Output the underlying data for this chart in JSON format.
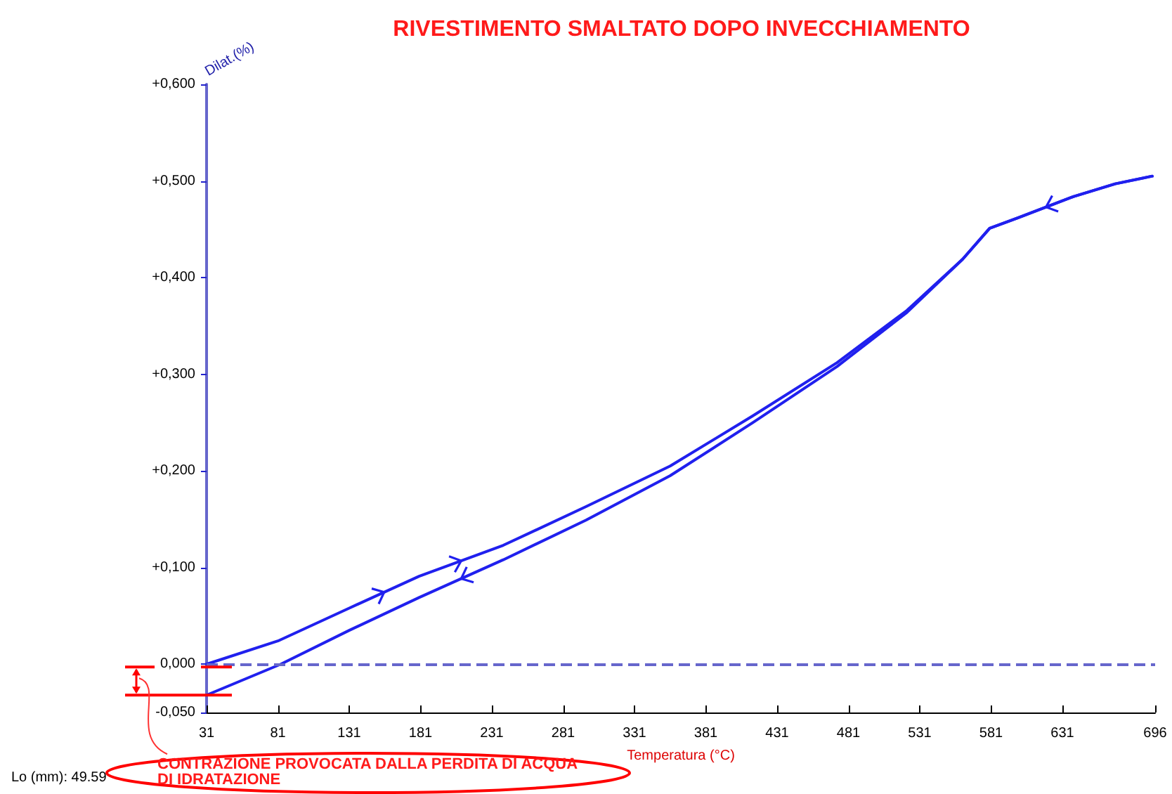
{
  "chart_data": {
    "type": "line",
    "title": "RIVESTIMENTO SMALTATO DOPO INVECCHIAMENTO",
    "xlabel": "Temperatura (°C)",
    "ylabel": "Dilat.(%)",
    "annotations": [
      "CONTRAZIONE PROVOCATA DALLA PERDITA DI ACQUA DI IDRATAZIONE",
      "Lo (mm): 49.59"
    ],
    "series": [
      {
        "color": "#2020ee",
        "x": [
          31,
          81,
          131,
          180,
          239,
          297,
          356,
          414,
          473,
          522,
          561,
          580,
          600,
          639,
          668,
          694
        ],
        "values": [
          0.0,
          0.024,
          0.058,
          0.091,
          0.123,
          0.163,
          0.205,
          0.257,
          0.312,
          0.366,
          0.419,
          0.451,
          0.462,
          0.484,
          0.497,
          0.505
        ]
      },
      {
        "color": "#2020ee",
        "x": [
          694,
          668,
          639,
          600,
          580,
          561,
          522,
          473,
          414,
          356,
          297,
          239,
          180,
          131,
          83,
          31
        ],
        "values": [
          0.505,
          0.497,
          0.484,
          0.462,
          0.451,
          0.419,
          0.364,
          0.308,
          0.25,
          0.195,
          0.149,
          0.108,
          0.069,
          0.035,
          0.0,
          -0.032
        ]
      }
    ],
    "xlim": [
      31,
      696
    ],
    "xticks": [
      31,
      81,
      131,
      181,
      231,
      281,
      331,
      381,
      431,
      481,
      531,
      581,
      631,
      696
    ],
    "ylim": [
      -0.05,
      0.6
    ],
    "yticks": [
      {
        "value": -0.05,
        "label": "-0,050"
      },
      {
        "value": 0,
        "label": "0,000"
      },
      {
        "value": 0.1,
        "label": "+0,100"
      },
      {
        "value": 0.2,
        "label": "+0,200"
      },
      {
        "value": 0.3,
        "label": "+0,300"
      },
      {
        "value": 0.4,
        "label": "+0,400"
      },
      {
        "value": 0.5,
        "label": "+0,500"
      },
      {
        "value": 0.6,
        "label": "+0,600"
      }
    ],
    "ref_lines": [
      {
        "axis": "y",
        "value": 0,
        "color": "#6666cc",
        "line_style": "dashed"
      }
    ],
    "grid": false,
    "marker": "none",
    "line_style": "solid"
  }
}
